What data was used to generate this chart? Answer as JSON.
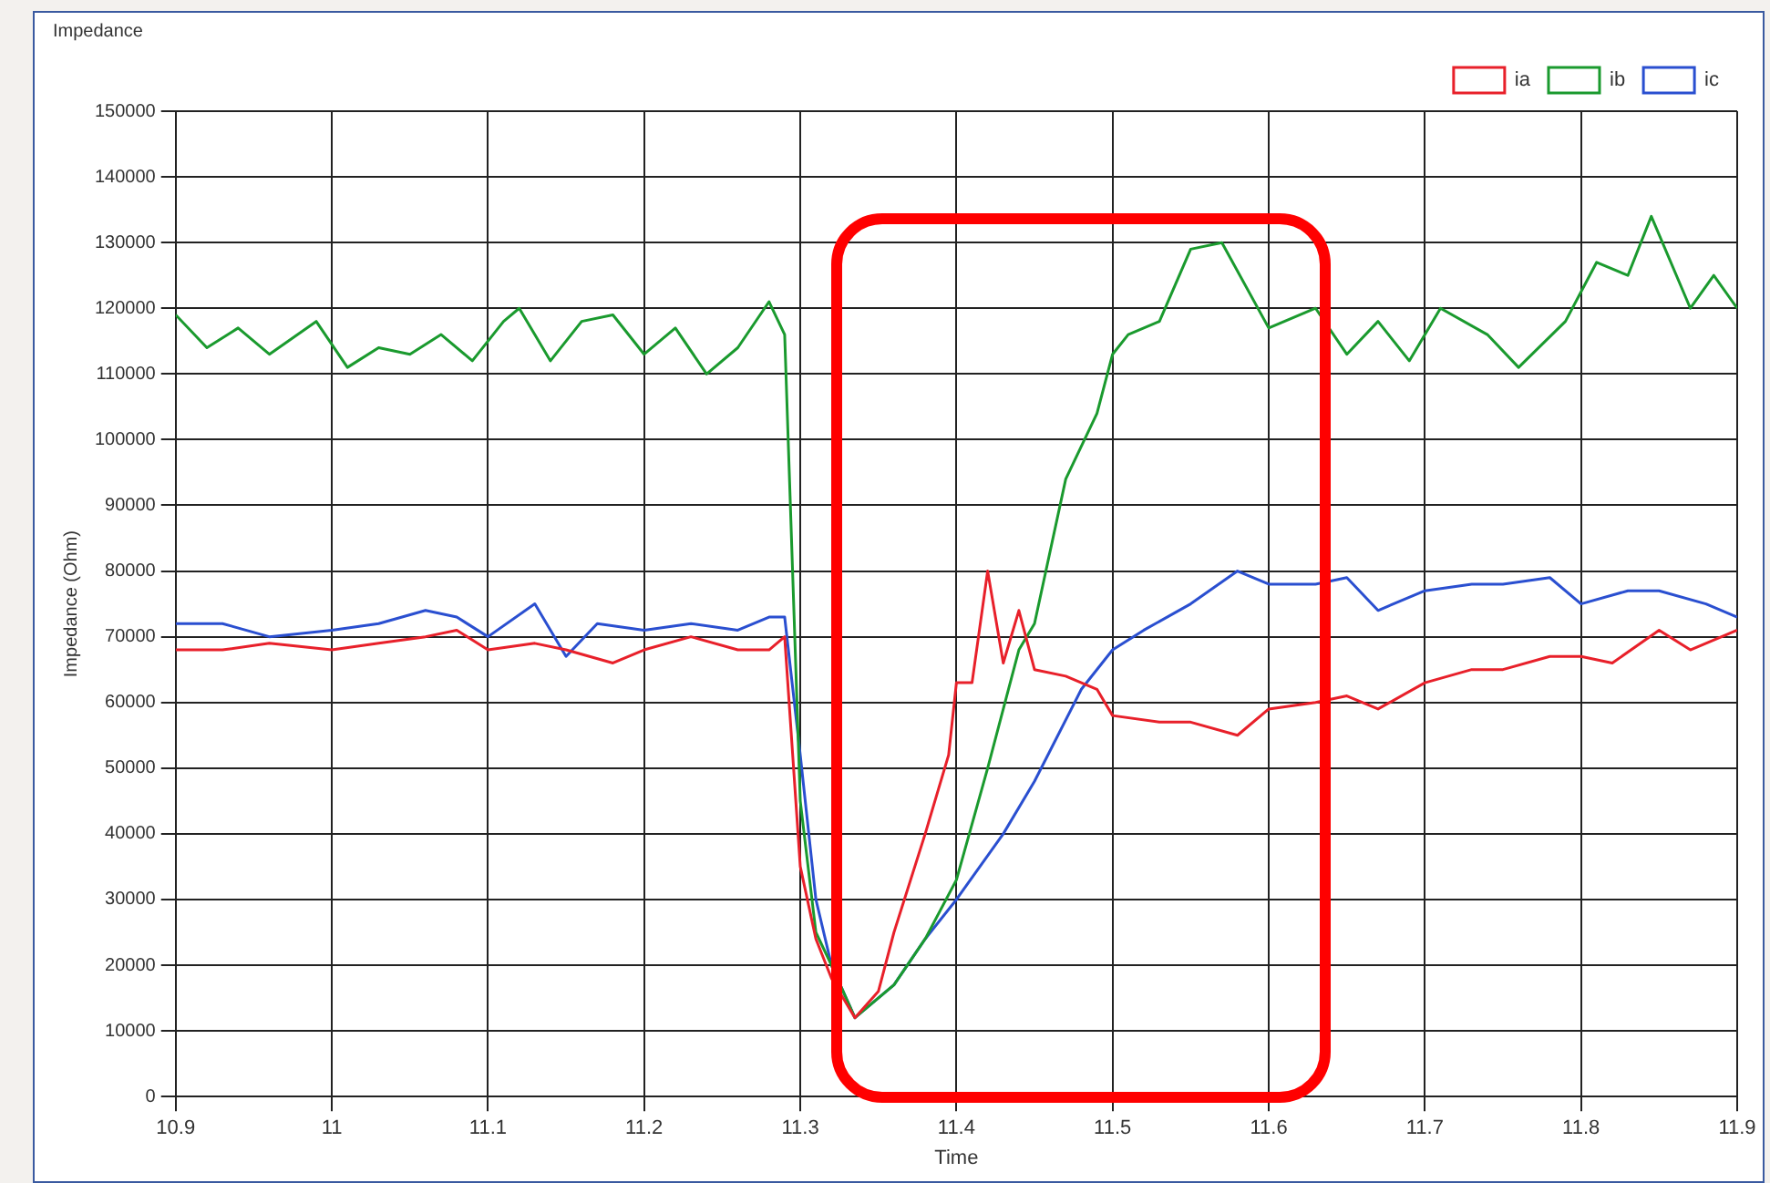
{
  "chart_data": {
    "type": "line",
    "title": "Impedance",
    "xlabel": "Time",
    "ylabel": "Impedance (Ohm)",
    "xlim": [
      10.9,
      11.9
    ],
    "xticks": [
      10.9,
      11,
      11.1,
      11.2,
      11.3,
      11.4,
      11.5,
      11.6,
      11.7,
      11.8,
      11.9
    ],
    "ylim": [
      0,
      150000
    ],
    "yticks": [
      0,
      10000,
      20000,
      30000,
      40000,
      50000,
      60000,
      70000,
      80000,
      90000,
      100000,
      110000,
      120000,
      130000,
      140000,
      150000
    ],
    "grid": true,
    "legend": "top right",
    "marker": "none",
    "line_style": "solid",
    "series": [
      {
        "name": "ia",
        "color": "#e8202a",
        "x": [
          10.9,
          10.93,
          10.96,
          11,
          11.03,
          11.06,
          11.08,
          11.1,
          11.13,
          11.15,
          11.18,
          11.2,
          11.23,
          11.26,
          11.28,
          11.29,
          11.3,
          11.31,
          11.32,
          11.335,
          11.35,
          11.36,
          11.38,
          11.395,
          11.4,
          11.41,
          11.42,
          11.43,
          11.44,
          11.45,
          11.47,
          11.49,
          11.5,
          11.53,
          11.55,
          11.58,
          11.6,
          11.63,
          11.65,
          11.67,
          11.7,
          11.73,
          11.75,
          11.78,
          11.8,
          11.82,
          11.85,
          11.87,
          11.9
        ],
        "values": [
          68000,
          68000,
          69000,
          68000,
          69000,
          70000,
          71000,
          68000,
          69000,
          68000,
          66000,
          68000,
          70000,
          68000,
          68000,
          70000,
          35000,
          24000,
          18000,
          12000,
          16000,
          25000,
          40000,
          52000,
          63000,
          63000,
          80000,
          66000,
          74000,
          65000,
          64000,
          62000,
          58000,
          57000,
          57000,
          55000,
          59000,
          60000,
          61000,
          59000,
          63000,
          65000,
          65000,
          67000,
          67000,
          66000,
          71000,
          68000,
          71000
        ]
      },
      {
        "name": "ib",
        "color": "#1a9a2e",
        "x": [
          10.9,
          10.92,
          10.94,
          10.96,
          10.99,
          11.01,
          11.03,
          11.05,
          11.07,
          11.09,
          11.11,
          11.12,
          11.14,
          11.16,
          11.18,
          11.2,
          11.22,
          11.24,
          11.26,
          11.28,
          11.29,
          11.3,
          11.31,
          11.32,
          11.335,
          11.36,
          11.38,
          11.4,
          11.42,
          11.44,
          11.45,
          11.47,
          11.49,
          11.5,
          11.51,
          11.53,
          11.55,
          11.57,
          11.6,
          11.63,
          11.65,
          11.67,
          11.69,
          11.71,
          11.74,
          11.76,
          11.79,
          11.81,
          11.83,
          11.845,
          11.87,
          11.885,
          11.9
        ],
        "values": [
          119000,
          114000,
          117000,
          113000,
          118000,
          111000,
          114000,
          113000,
          116000,
          112000,
          118000,
          120000,
          112000,
          118000,
          119000,
          113000,
          117000,
          110000,
          114000,
          121000,
          116000,
          45000,
          25000,
          20000,
          12000,
          17000,
          24000,
          33000,
          50000,
          68000,
          72000,
          94000,
          104000,
          113000,
          116000,
          118000,
          129000,
          130000,
          117000,
          120000,
          113000,
          118000,
          112000,
          120000,
          116000,
          111000,
          118000,
          127000,
          125000,
          134000,
          120000,
          125000,
          120000
        ]
      },
      {
        "name": "ic",
        "color": "#2a4fd0",
        "x": [
          10.9,
          10.93,
          10.96,
          11,
          11.03,
          11.06,
          11.08,
          11.1,
          11.13,
          11.15,
          11.17,
          11.2,
          11.23,
          11.26,
          11.28,
          11.29,
          11.3,
          11.31,
          11.32,
          11.335,
          11.36,
          11.38,
          11.4,
          11.43,
          11.45,
          11.48,
          11.5,
          11.52,
          11.55,
          11.58,
          11.6,
          11.63,
          11.65,
          11.67,
          11.7,
          11.73,
          11.75,
          11.78,
          11.8,
          11.83,
          11.85,
          11.88,
          11.9
        ],
        "values": [
          72000,
          72000,
          70000,
          71000,
          72000,
          74000,
          73000,
          70000,
          75000,
          67000,
          72000,
          71000,
          72000,
          71000,
          73000,
          73000,
          52000,
          30000,
          20000,
          12000,
          17000,
          24000,
          30000,
          40000,
          48000,
          62000,
          68000,
          71000,
          75000,
          80000,
          78000,
          78000,
          79000,
          74000,
          77000,
          78000,
          78000,
          79000,
          75000,
          77000,
          77000,
          75000,
          73000
        ]
      }
    ]
  }
}
